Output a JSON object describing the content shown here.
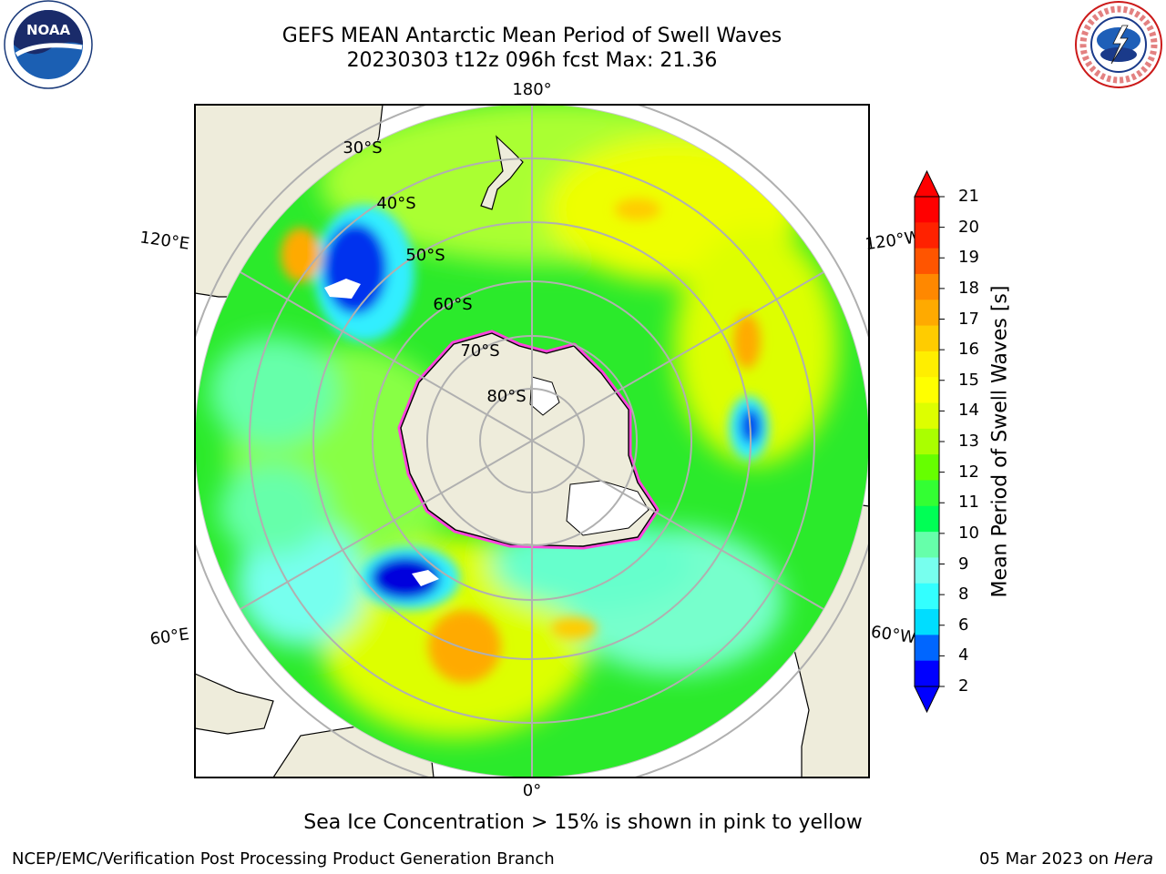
{
  "header": {
    "title_line1": "GEFS MEAN Antarctic Mean Period of Swell Waves",
    "title_line2": "20230303 t12z 096h fcst   Max: 21.36"
  },
  "logos": {
    "left": {
      "icon": "noaa-logo",
      "text": "NOAA"
    },
    "right": {
      "icon": "nws-logo",
      "ring_text": "NATIONAL WEATHER SERVICE"
    }
  },
  "map": {
    "projection": "south-polar-stereographic",
    "longitude_labels": {
      "top": "180°",
      "bottom": "0°",
      "upper_left": "120°E",
      "upper_right": "120°W",
      "lower_left": "60°E",
      "lower_right": "60°W"
    },
    "latitude_labels": [
      "30°S",
      "40°S",
      "50°S",
      "60°S",
      "70°S",
      "80°S"
    ],
    "colors": {
      "land": "#eeecdb",
      "ocean_main": "#2bea2b",
      "grid": "#b0b0b0",
      "sea_ice": "#ff44dd"
    }
  },
  "colorbar": {
    "label": "Mean Period of Swell Waves [s]",
    "ticks": [
      "21",
      "20",
      "19",
      "18",
      "17",
      "16",
      "15",
      "14",
      "13",
      "12",
      "11",
      "10",
      "9",
      "8",
      "6",
      "4",
      "2"
    ],
    "colors": [
      "#ff0000",
      "#ff2200",
      "#ff5500",
      "#ff8800",
      "#ffaa00",
      "#ffcc00",
      "#ffee00",
      "#ffff00",
      "#ddff00",
      "#aaff00",
      "#66ff00",
      "#33ff33",
      "#00ff55",
      "#66ffaa",
      "#77ffee",
      "#33ffff",
      "#00ddff",
      "#0066ff",
      "#0000ff"
    ]
  },
  "footer": {
    "note": "Sea Ice Concentration > 15% is shown in pink to yellow",
    "left": "NCEP/EMC/Verification Post Processing Product Generation Branch",
    "right_date": "05 Mar 2023 on",
    "right_machine": "Hera"
  }
}
